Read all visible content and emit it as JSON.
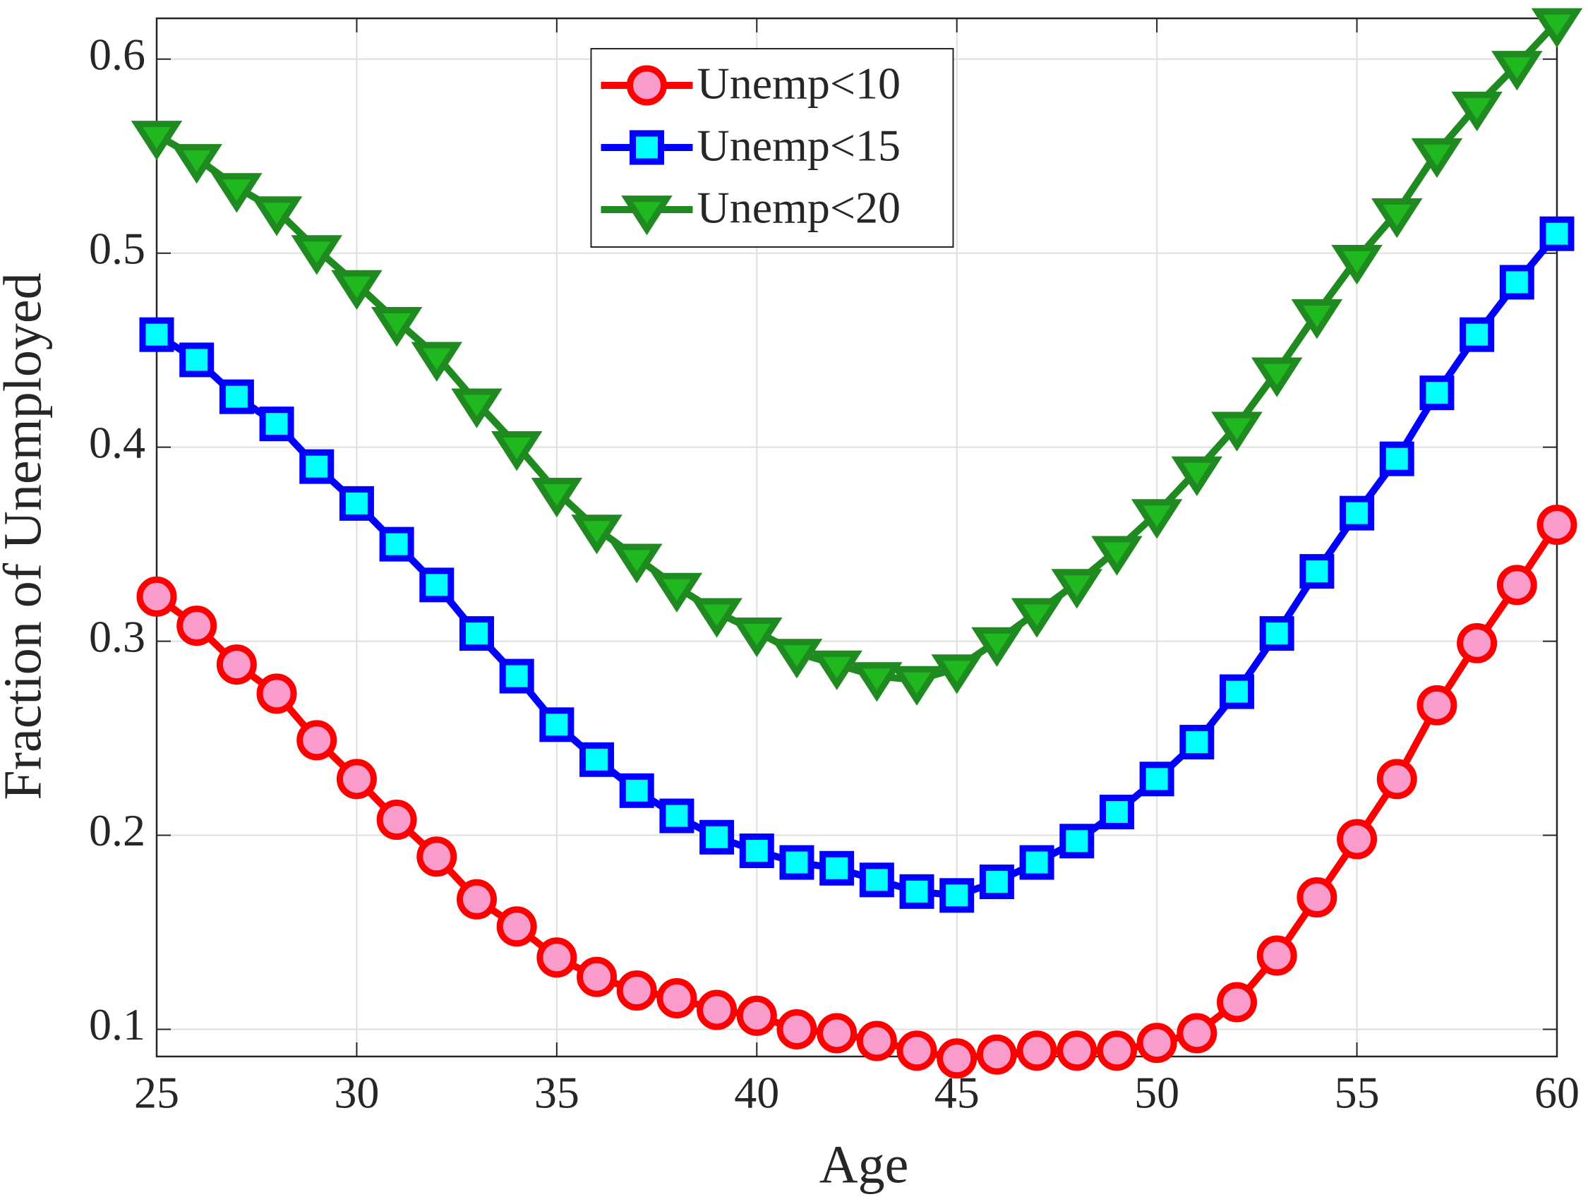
{
  "chart_data": {
    "type": "line",
    "xlabel": "Age",
    "ylabel": "Fraction of Unemployed",
    "x": [
      25,
      26,
      27,
      28,
      29,
      30,
      31,
      32,
      33,
      34,
      35,
      36,
      37,
      38,
      39,
      40,
      41,
      42,
      43,
      44,
      45,
      46,
      47,
      48,
      49,
      50,
      51,
      52,
      53,
      54,
      55,
      56,
      57,
      58,
      59,
      60
    ],
    "series": [
      {
        "name": "Unemp<10",
        "color": "#ff0000",
        "marker": "o",
        "marker_face": "#f99ccb",
        "values": [
          0.323,
          0.308,
          0.288,
          0.273,
          0.249,
          0.229,
          0.208,
          0.189,
          0.167,
          0.153,
          0.137,
          0.127,
          0.12,
          0.116,
          0.11,
          0.107,
          0.1,
          0.098,
          0.094,
          0.089,
          0.085,
          0.087,
          0.089,
          0.089,
          0.089,
          0.093,
          0.098,
          0.114,
          0.138,
          0.168,
          0.198,
          0.229,
          0.267,
          0.299,
          0.329,
          0.36
        ]
      },
      {
        "name": "Unemp<15",
        "color": "#0000ff",
        "marker": "s",
        "marker_face": "#00ffff",
        "values": [
          0.458,
          0.445,
          0.426,
          0.412,
          0.39,
          0.371,
          0.35,
          0.329,
          0.304,
          0.282,
          0.257,
          0.239,
          0.223,
          0.21,
          0.199,
          0.192,
          0.186,
          0.183,
          0.177,
          0.171,
          0.169,
          0.176,
          0.186,
          0.197,
          0.212,
          0.229,
          0.248,
          0.274,
          0.304,
          0.336,
          0.366,
          0.394,
          0.428,
          0.458,
          0.485,
          0.51
        ]
      },
      {
        "name": "Unemp<20",
        "color": "#1f8a1f",
        "marker": "v",
        "marker_face": "#1fb81f",
        "values": [
          0.561,
          0.549,
          0.534,
          0.522,
          0.502,
          0.484,
          0.465,
          0.447,
          0.423,
          0.401,
          0.377,
          0.358,
          0.343,
          0.328,
          0.315,
          0.305,
          0.294,
          0.288,
          0.282,
          0.28,
          0.286,
          0.3,
          0.315,
          0.33,
          0.347,
          0.366,
          0.388,
          0.411,
          0.439,
          0.469,
          0.497,
          0.521,
          0.552,
          0.576,
          0.597,
          0.619
        ]
      }
    ],
    "xlim": [
      25,
      60
    ],
    "xticks": [
      25,
      30,
      35,
      40,
      45,
      50,
      55,
      60
    ],
    "ylim": [
      0.086,
      0.621
    ],
    "yticks": [
      0.1,
      0.2,
      0.3,
      0.4,
      0.5,
      0.6
    ],
    "grid": true,
    "legend": "upper center"
  }
}
